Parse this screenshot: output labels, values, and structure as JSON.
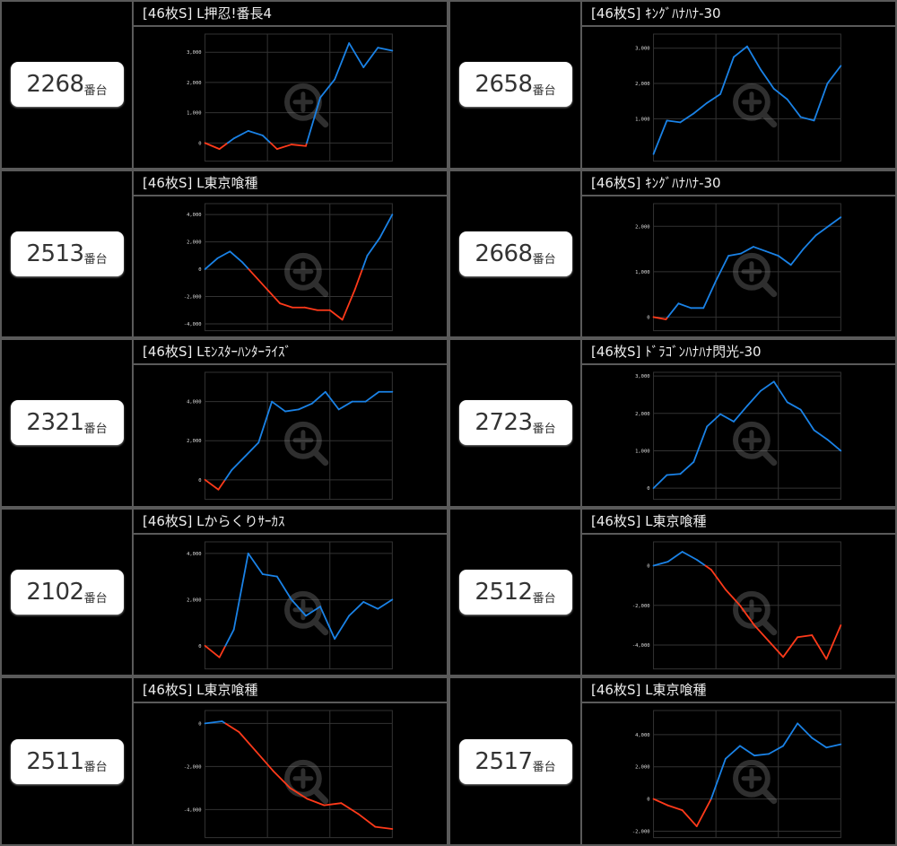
{
  "unit_label": "番台",
  "colors": {
    "positive": "#1a82e6",
    "negative": "#ff3a1a",
    "grid": "#333333",
    "tick": "#dddddd"
  },
  "icons": {
    "watermark": "zoom-in-magnifier-icon"
  },
  "panels": [
    {
      "machine_no": "2268",
      "title": "[46枚S] L押忍!番長4",
      "chart_data": {
        "type": "line",
        "yticks": [
          0,
          1000,
          2000,
          3000
        ],
        "ytick_labels": [
          "0",
          "1,000",
          "2,000",
          "3,000"
        ],
        "ylim": [
          -600,
          3600
        ],
        "values": [
          0,
          -200,
          150,
          400,
          250,
          -200,
          -50,
          -100,
          1500,
          2100,
          3300,
          2500,
          3150,
          3050
        ]
      }
    },
    {
      "machine_no": "2658",
      "title": "[46枚S] ｷﾝｸﾞﾊﾅﾊﾅ-30",
      "chart_data": {
        "type": "line",
        "yticks": [
          1000,
          2000,
          3000
        ],
        "ytick_labels": [
          "1,000",
          "2,000",
          "3,000"
        ],
        "ylim": [
          -200,
          3400
        ],
        "values": [
          0,
          950,
          900,
          1150,
          1450,
          1700,
          2750,
          3050,
          2400,
          1850,
          1550,
          1050,
          950,
          2000,
          2500
        ]
      }
    },
    {
      "machine_no": "2513",
      "title": "[46枚S] L東京喰種",
      "chart_data": {
        "type": "line",
        "yticks": [
          -4000,
          -2000,
          0,
          2000,
          4000
        ],
        "ytick_labels": [
          "-4,000",
          "-2,000",
          "0",
          "2,000",
          "4,000"
        ],
        "ylim": [
          -4500,
          4800
        ],
        "values": [
          0,
          800,
          1300,
          500,
          -500,
          -1500,
          -2500,
          -2800,
          -2800,
          -3000,
          -3000,
          -3700,
          -1500,
          1000,
          2300,
          4000
        ]
      }
    },
    {
      "machine_no": "2668",
      "title": "[46枚S] ｷﾝｸﾞﾊﾅﾊﾅ-30",
      "chart_data": {
        "type": "line",
        "yticks": [
          0,
          1000,
          2000
        ],
        "ytick_labels": [
          "0",
          "1,000",
          "2,000"
        ],
        "ylim": [
          -300,
          2500
        ],
        "values": [
          0,
          -50,
          300,
          200,
          200,
          800,
          1350,
          1400,
          1550,
          1450,
          1350,
          1150,
          1500,
          1800,
          2000,
          2200
        ]
      }
    },
    {
      "machine_no": "2321",
      "title": "[46枚S] Lﾓﾝｽﾀｰﾊﾝﾀｰﾗｲｽﾞ",
      "chart_data": {
        "type": "line",
        "yticks": [
          0,
          2000,
          4000
        ],
        "ytick_labels": [
          "0",
          "2,000",
          "4,000"
        ],
        "ylim": [
          -1000,
          5500
        ],
        "values": [
          0,
          -500,
          500,
          1200,
          1900,
          4000,
          3500,
          3600,
          3900,
          4500,
          3600,
          4000,
          4000,
          4500,
          4500
        ]
      }
    },
    {
      "machine_no": "2723",
      "title": "[46枚S] ﾄﾞﾗｺﾞﾝﾊﾅﾊﾅ閃光-30",
      "chart_data": {
        "type": "line",
        "yticks": [
          0,
          1000,
          2000,
          3000
        ],
        "ytick_labels": [
          "0",
          "1,000",
          "2,000",
          "3,000"
        ],
        "ylim": [
          -300,
          3100
        ],
        "values": [
          0,
          350,
          380,
          700,
          1650,
          1980,
          1780,
          2200,
          2600,
          2850,
          2300,
          2100,
          1550,
          1300,
          1000
        ]
      }
    },
    {
      "machine_no": "2102",
      "title": "[46枚S] Lからくりｻｰｶｽ",
      "chart_data": {
        "type": "line",
        "yticks": [
          0,
          2000,
          4000
        ],
        "ytick_labels": [
          "0",
          "2,000",
          "4,000"
        ],
        "ylim": [
          -1000,
          4500
        ],
        "values": [
          0,
          -500,
          700,
          4000,
          3100,
          3000,
          2000,
          1300,
          1700,
          300,
          1300,
          1900,
          1600,
          2000
        ]
      }
    },
    {
      "machine_no": "2512",
      "title": "[46枚S] L東京喰種",
      "chart_data": {
        "type": "line",
        "yticks": [
          -4000,
          -2000,
          0
        ],
        "ytick_labels": [
          "-4,000",
          "-2,000",
          "0"
        ],
        "ylim": [
          -5200,
          1200
        ],
        "values": [
          0,
          200,
          700,
          300,
          -200,
          -1200,
          -2000,
          -3000,
          -3800,
          -4600,
          -3600,
          -3500,
          -4700,
          -3000
        ]
      }
    },
    {
      "machine_no": "2511",
      "title": "[46枚S] L東京喰種",
      "chart_data": {
        "type": "line",
        "yticks": [
          -4000,
          -2000,
          0
        ],
        "ytick_labels": [
          "-4,000",
          "-2,000",
          "0"
        ],
        "ylim": [
          -5300,
          600
        ],
        "values": [
          0,
          100,
          -400,
          -1300,
          -2200,
          -3000,
          -3500,
          -3800,
          -3700,
          -4200,
          -4800,
          -4900
        ]
      }
    },
    {
      "machine_no": "2517",
      "title": "[46枚S] L東京喰種",
      "chart_data": {
        "type": "line",
        "yticks": [
          -2000,
          0,
          2000,
          4000
        ],
        "ytick_labels": [
          "-2,000",
          "0",
          "2,000",
          "4,000"
        ],
        "ylim": [
          -2400,
          5500
        ],
        "values": [
          0,
          -400,
          -700,
          -1700,
          0,
          2500,
          3300,
          2700,
          2800,
          3300,
          4700,
          3800,
          3200,
          3400
        ]
      }
    }
  ]
}
